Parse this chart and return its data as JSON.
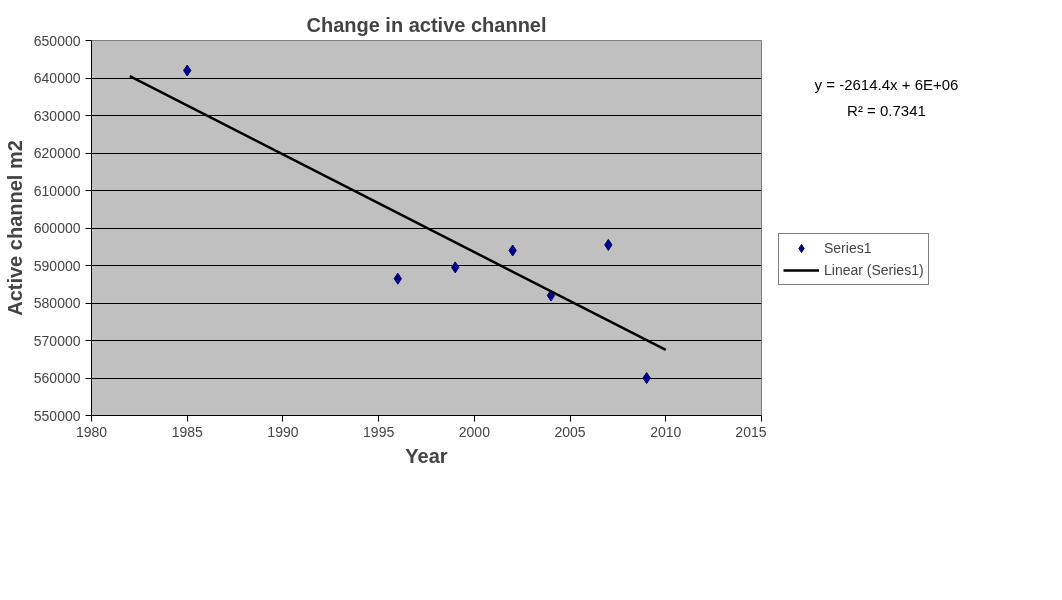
{
  "chart_data": {
    "type": "scatter",
    "title": "Change in active channel",
    "xlabel": "Year",
    "ylabel": "Active channel m2",
    "annotations": [
      "y = -2614.4x + 6E+06",
      "R² = 0.7341"
    ],
    "series": [
      {
        "name": "Series1",
        "color": "#000080",
        "marker": "diamond",
        "x": [
          1985,
          1996,
          1999,
          2002,
          2004,
          2007,
          2009
        ],
        "values": [
          642000,
          586500,
          589500,
          594000,
          582000,
          595500,
          560000
        ]
      },
      {
        "name": "Linear (Series1)",
        "type": "line",
        "color": "#000000",
        "line_style": "solid",
        "x": [
          1982,
          2010
        ],
        "values": [
          640500,
          567500
        ]
      }
    ],
    "xlim": [
      1980,
      2015
    ],
    "xticks": [
      1980,
      1985,
      1990,
      1995,
      2000,
      2005,
      2010,
      2015
    ],
    "ylim": [
      550000,
      650000
    ],
    "yticks": [
      550000,
      560000,
      570000,
      580000,
      590000,
      600000,
      610000,
      620000,
      630000,
      640000,
      650000
    ],
    "grid": "y",
    "legend": "right"
  }
}
